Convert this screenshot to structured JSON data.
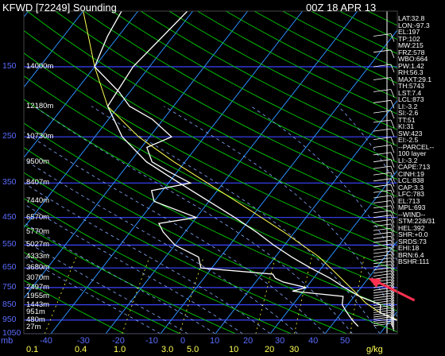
{
  "header": {
    "title": "KFWD [72249] Sounding",
    "time": "00Z 18 APR 13"
  },
  "params": [
    "LAT:32.8",
    "LON:-97.3",
    "EL:197",
    "TP:102",
    "MW:215",
    "FRZ:578",
    "WBO:664",
    "PW:1.42",
    "RH:56.3",
    "MAXT:29.1",
    "TH:5743",
    "LST:7.4",
    "LCL:873",
    "LI:-3.2",
    "SI:-2.6",
    "TT:51",
    "KI:31",
    "SW:423",
    "EI:-2.5",
    "--PARCEL--",
    "100 layer",
    "LI:-3.2",
    "CAPE:713",
    "CINH:19",
    "LCL:838",
    "CAP:3.3",
    "LFC:783",
    "EL:713",
    "MPL:693",
    "--WIND--",
    "STM:228/31",
    "HEL:392",
    "SHR:+0.0",
    "SRDS:73",
    "EHI:18",
    "BRN:6.4",
    "BSHR:111"
  ],
  "chart_data": {
    "type": "skew-t",
    "pressure_axis": {
      "unit": "mb",
      "ticks": [
        150,
        250,
        350,
        450,
        550,
        650,
        750,
        850,
        950,
        1050
      ]
    },
    "temperature_axis": {
      "ticks": [
        -40,
        -30,
        -20,
        -10,
        0,
        10,
        20,
        30,
        40,
        50
      ]
    },
    "mixing_ratio_axis": {
      "unit": "g/kg",
      "ticks": [
        "0.1",
        "0.4",
        "1.0",
        "3.0",
        "5.0",
        "10",
        "20",
        "30"
      ]
    },
    "heights": [
      {
        "label": "14000m",
        "p": 150
      },
      {
        "label": "12180m",
        "p": 200
      },
      {
        "label": "10730m",
        "p": 250
      },
      {
        "label": "9500m",
        "p": 300
      },
      {
        "label": "8407m",
        "p": 350
      },
      {
        "label": "7440m",
        "p": 400
      },
      {
        "label": "6570m",
        "p": 450
      },
      {
        "label": "5770m",
        "p": 500
      },
      {
        "label": "5027m",
        "p": 550
      },
      {
        "label": "4333m",
        "p": 600
      },
      {
        "label": "3680m",
        "p": 650
      },
      {
        "label": "3070m",
        "p": 700
      },
      {
        "label": "2497m",
        "p": 750
      },
      {
        "label": "1955m",
        "p": 800
      },
      {
        "label": "1443m",
        "p": 850
      },
      {
        "label": "951m",
        "p": 900
      },
      {
        "label": "480m",
        "p": 950
      },
      {
        "label": "27m",
        "p": 1000
      }
    ],
    "temperature_profile": [
      [
        995,
        25
      ],
      [
        950,
        21
      ],
      [
        900,
        17
      ],
      [
        850,
        16
      ],
      [
        800,
        11
      ],
      [
        750,
        7
      ],
      [
        700,
        3
      ],
      [
        650,
        -2
      ],
      [
        600,
        -7
      ],
      [
        550,
        -12
      ],
      [
        500,
        -17
      ],
      [
        450,
        -23
      ],
      [
        400,
        -30
      ],
      [
        350,
        -38
      ],
      [
        300,
        -47
      ],
      [
        250,
        -55
      ],
      [
        200,
        -62
      ],
      [
        150,
        -63
      ],
      [
        100,
        -61
      ]
    ],
    "dewpoint_profile": [
      [
        995,
        15
      ],
      [
        950,
        13
      ],
      [
        900,
        11
      ],
      [
        850,
        9
      ],
      [
        800,
        8
      ],
      [
        770,
        -2
      ],
      [
        750,
        0
      ],
      [
        720,
        -5
      ],
      [
        700,
        -7
      ],
      [
        680,
        -8
      ],
      [
        650,
        -22
      ],
      [
        600,
        -24
      ],
      [
        550,
        -30
      ],
      [
        500,
        -34
      ],
      [
        470,
        -36
      ],
      [
        450,
        -30
      ],
      [
        400,
        -40
      ],
      [
        370,
        -42
      ],
      [
        350,
        -36
      ],
      [
        320,
        -42
      ],
      [
        300,
        -46
      ],
      [
        270,
        -49
      ],
      [
        250,
        -46
      ],
      [
        220,
        -52
      ],
      [
        200,
        -58
      ],
      [
        180,
        -62
      ],
      [
        150,
        -70
      ],
      [
        120,
        -72
      ],
      [
        100,
        -73
      ]
    ],
    "parcel_profile": [
      [
        995,
        25
      ],
      [
        900,
        17
      ],
      [
        838,
        13
      ],
      [
        800,
        11
      ],
      [
        700,
        5
      ],
      [
        600,
        -2
      ],
      [
        500,
        -12
      ],
      [
        400,
        -25
      ],
      [
        300,
        -42
      ],
      [
        250,
        -52
      ],
      [
        200,
        -62
      ],
      [
        150,
        -70
      ],
      [
        100,
        -80
      ]
    ],
    "annotation": {
      "type": "arrow",
      "p": 700,
      "t": 10,
      "color": "#ff3050"
    },
    "colors": {
      "isobar": "#3a44ff",
      "isotherm": "#2a8fff",
      "dry_adiabat": "#00cc00",
      "moist_adiabat": "#88aaff",
      "mixing_ratio": "#ffff33",
      "temperature": "#ffffff",
      "dewpoint": "#ffffff",
      "parcel": "#ffff55",
      "arrow": "#ff3050"
    }
  }
}
